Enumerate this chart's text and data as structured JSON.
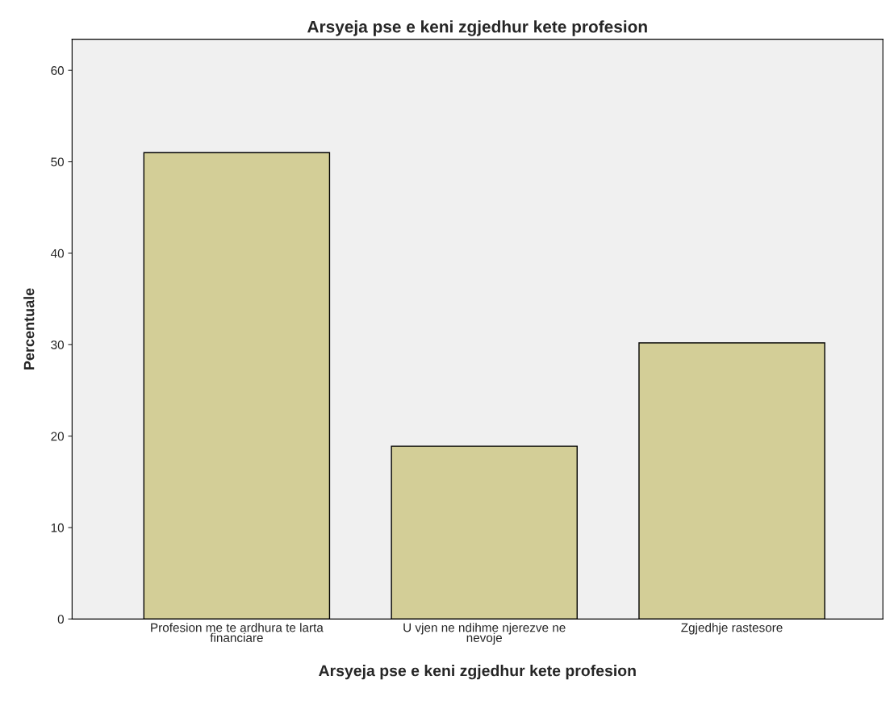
{
  "chart_data": {
    "type": "bar",
    "title": "Arsyeja pse e keni zgjedhur kete profesion",
    "xlabel": "Arsyeja pse e keni zgjedhur kete profesion",
    "ylabel": "Percentuale",
    "categories": [
      "Profesion me te ardhura te larta\nfinanciare",
      "U vjen ne ndihme njerezve ne\nnevoje",
      "Zgjedhje rastesore"
    ],
    "values": [
      51.0,
      18.9,
      30.2
    ],
    "color": "#d3ce97",
    "ylim": [
      0,
      63.4
    ],
    "yticks": [
      0,
      10,
      20,
      30,
      40,
      50,
      60
    ],
    "grid": false
  }
}
